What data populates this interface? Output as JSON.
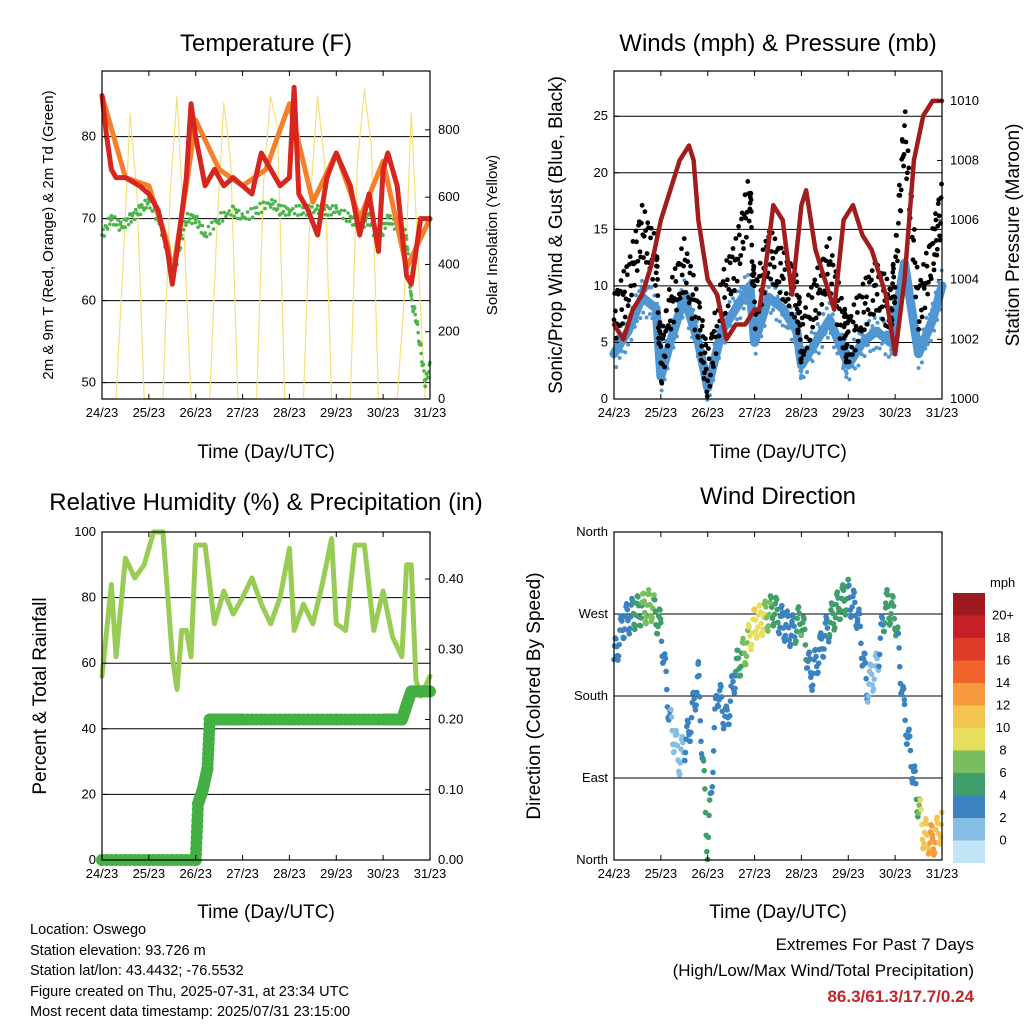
{
  "info": {
    "location": "Location: Oswego",
    "elevation": "Station elevation: 93.726 m",
    "latlon": "Station lat/lon: 43.4432; -76.5532",
    "created": "Figure created on Thu, 2025-07-31, at 23:34 UTC",
    "timestamp": "Most recent data timestamp: 2025/07/31 23:15:00"
  },
  "extremes": {
    "line1": "Extremes For Past 7 Days",
    "line2": "(High/Low/Max Wind/Total Precipitation)",
    "values": "86.3/61.3/17.7/0.24"
  },
  "colors": {
    "t2m": "#d7261e",
    "t9m": "#f57f2a",
    "td": "#4bb44a",
    "solar": "#f7e07a",
    "wind": "#4f96d2",
    "gust": "#000000",
    "pressure": "#a11d1d",
    "rh": "#99cc55",
    "precip": "#44b044"
  },
  "chart_data": [
    {
      "type": "line",
      "title": "Temperature (F)",
      "xlabel": "Time (Day/UTC)",
      "ylabel": "2m & 9m T (Red, Orange) & 2m Td (Green)",
      "y2label": "Solar Insolation (Yellow)",
      "x_ticks": [
        "24/23",
        "25/23",
        "26/23",
        "27/23",
        "28/23",
        "29/23",
        "30/23",
        "31/23"
      ],
      "xlim": [
        0,
        7
      ],
      "ylim": [
        48,
        88
      ],
      "y_ticks": [
        50,
        60,
        70,
        80
      ],
      "y2lim": [
        0,
        975
      ],
      "y2_ticks": [
        0,
        200,
        400,
        600,
        800
      ],
      "grid": "horizontal",
      "series": [
        {
          "name": "2m T",
          "axis": "left",
          "x": [
            0,
            0.1,
            0.2,
            0.3,
            0.5,
            0.8,
            1.0,
            1.2,
            1.4,
            1.5,
            1.6,
            1.8,
            1.9,
            2.0,
            2.2,
            2.4,
            2.6,
            2.8,
            3.0,
            3.2,
            3.4,
            3.6,
            3.8,
            4.0,
            4.1,
            4.2,
            4.4,
            4.6,
            4.8,
            5.0,
            5.3,
            5.5,
            5.7,
            5.9,
            6.0,
            6.1,
            6.3,
            6.5,
            6.6,
            6.8,
            7.0
          ],
          "values": [
            85,
            80,
            76,
            75,
            75,
            74,
            73,
            71,
            66,
            62,
            66,
            75,
            84,
            80,
            74,
            76,
            74,
            75,
            74,
            73,
            78,
            76,
            74,
            75,
            86,
            73,
            71,
            68,
            75,
            78,
            74,
            68,
            73,
            66,
            76,
            78,
            74,
            63,
            62,
            70,
            70
          ]
        },
        {
          "name": "9m T",
          "axis": "left",
          "x": [
            0,
            0.2,
            0.5,
            1.0,
            1.4,
            1.5,
            1.8,
            2.0,
            2.5,
            3.0,
            3.5,
            4.0,
            4.5,
            5.0,
            5.5,
            6.0,
            6.5,
            7.0
          ],
          "values": [
            85,
            81,
            75,
            74,
            67,
            63,
            74,
            82,
            76,
            74,
            76,
            84,
            72,
            78,
            70,
            77,
            64,
            70
          ]
        },
        {
          "name": "2m Td",
          "axis": "left",
          "x": [
            0,
            0.2,
            0.4,
            0.6,
            0.8,
            1.0,
            1.2,
            1.4,
            1.5,
            1.6,
            1.8,
            2.0,
            2.2,
            2.5,
            2.8,
            3.0,
            3.3,
            3.6,
            3.8,
            4.0,
            4.3,
            4.6,
            4.8,
            5.0,
            5.3,
            5.5,
            5.7,
            5.9,
            6.1,
            6.3,
            6.5,
            6.6,
            6.7,
            6.8,
            6.9,
            7.0
          ],
          "values": [
            68,
            70,
            69,
            70,
            71,
            72,
            70,
            66,
            63,
            65,
            70,
            70,
            68,
            70,
            71,
            70,
            71,
            72,
            71,
            71,
            71,
            71,
            71,
            71,
            70,
            69,
            70,
            67,
            70,
            69,
            68,
            60,
            58,
            54,
            50,
            52
          ]
        },
        {
          "name": "Solar Insolation",
          "axis": "right",
          "x": [
            0,
            0.3,
            0.45,
            0.6,
            0.75,
            0.9,
            1.3,
            1.45,
            1.6,
            1.75,
            1.9,
            2.3,
            2.45,
            2.6,
            2.75,
            2.9,
            3.3,
            3.45,
            3.6,
            3.75,
            3.9,
            4.3,
            4.45,
            4.6,
            4.75,
            4.9,
            5.3,
            5.45,
            5.6,
            5.75,
            5.9,
            6.3,
            6.45,
            6.6,
            6.75,
            6.9,
            7.0
          ],
          "values": [
            0,
            0,
            400,
            850,
            600,
            0,
            0,
            600,
            900,
            500,
            0,
            0,
            500,
            880,
            700,
            0,
            0,
            650,
            900,
            800,
            0,
            0,
            600,
            900,
            700,
            0,
            0,
            700,
            920,
            750,
            0,
            0,
            300,
            850,
            400,
            0,
            0
          ]
        }
      ]
    },
    {
      "type": "scatter",
      "title": "Winds (mph) & Pressure (mb)",
      "xlabel": "Time (Day/UTC)",
      "ylabel": "Sonic/Prop Wind & Gust (Blue, Black)",
      "y2label": "Station Pressure (Maroon)",
      "x_ticks": [
        "24/23",
        "25/23",
        "26/23",
        "27/23",
        "28/23",
        "29/23",
        "30/23",
        "31/23"
      ],
      "xlim": [
        0,
        7
      ],
      "ylim": [
        0,
        29
      ],
      "y_ticks": [
        0,
        5,
        10,
        15,
        20,
        25
      ],
      "y2lim": [
        1000,
        1011
      ],
      "y2_ticks": [
        1000,
        1002,
        1004,
        1006,
        1008,
        1010
      ],
      "grid": "horizontal",
      "series": [
        {
          "name": "Wind",
          "axis": "left",
          "x": [
            0,
            0.3,
            0.6,
            0.9,
            1.0,
            1.2,
            1.5,
            1.8,
            2.0,
            2.3,
            2.6,
            2.9,
            3.0,
            3.3,
            3.6,
            3.9,
            4.0,
            4.3,
            4.6,
            4.9,
            5.0,
            5.3,
            5.6,
            5.9,
            6.0,
            6.2,
            6.5,
            6.8,
            7.0
          ],
          "values": [
            4,
            6,
            9,
            8,
            2,
            5,
            9,
            5,
            1,
            6,
            8,
            10,
            5,
            9,
            8,
            6,
            3,
            5,
            7,
            4,
            3,
            5,
            6,
            5,
            7,
            12,
            4,
            7,
            10
          ]
        },
        {
          "name": "Gust",
          "axis": "left",
          "x": [
            0,
            0.3,
            0.6,
            0.9,
            1.0,
            1.2,
            1.5,
            1.8,
            2.0,
            2.3,
            2.6,
            2.9,
            3.0,
            3.3,
            3.6,
            3.9,
            4.0,
            4.3,
            4.6,
            4.9,
            5.0,
            5.3,
            5.6,
            5.9,
            6.0,
            6.2,
            6.5,
            6.8,
            7.0
          ],
          "values": [
            7,
            10,
            15,
            12,
            3,
            8,
            12,
            7,
            2,
            9,
            12,
            18,
            8,
            13,
            11,
            9,
            5,
            9,
            12,
            6,
            5,
            8,
            10,
            8,
            11,
            24,
            8,
            13,
            17
          ]
        },
        {
          "name": "Station Pressure",
          "axis": "right",
          "x": [
            0,
            0.2,
            0.4,
            0.6,
            0.8,
            1.0,
            1.2,
            1.4,
            1.6,
            1.7,
            1.8,
            2.0,
            2.2,
            2.4,
            2.6,
            2.8,
            3.0,
            3.1,
            3.2,
            3.4,
            3.6,
            3.8,
            4.0,
            4.1,
            4.3,
            4.5,
            4.7,
            4.9,
            5.1,
            5.3,
            5.5,
            5.6,
            5.8,
            6.0,
            6.2,
            6.4,
            6.6,
            6.8,
            7.0
          ],
          "values": [
            1002.5,
            1002,
            1003,
            1003.5,
            1004.5,
            1006,
            1007,
            1008,
            1008.5,
            1008,
            1006,
            1004,
            1003.5,
            1002,
            1002.5,
            1002.5,
            1003,
            1003,
            1004,
            1006.5,
            1006,
            1003.5,
            1006.5,
            1007,
            1005,
            1004,
            1003,
            1006,
            1006.5,
            1005.5,
            1005,
            1004.5,
            1003.5,
            1001.5,
            1004,
            1008,
            1009.5,
            1010,
            1010
          ]
        }
      ]
    },
    {
      "type": "line",
      "title": "Relative Humidity (%) & Precipitation (in)",
      "xlabel": "Time (Day/UTC)",
      "ylabel": "Percent & Total Rainfall",
      "x_ticks": [
        "24/23",
        "25/23",
        "26/23",
        "27/23",
        "28/23",
        "29/23",
        "30/23",
        "31/23"
      ],
      "xlim": [
        0,
        7
      ],
      "ylim": [
        0,
        100
      ],
      "y_ticks": [
        0,
        20,
        40,
        60,
        80,
        100
      ],
      "y2lim": [
        0,
        0.467
      ],
      "y2_ticks": [
        0.0,
        0.1,
        0.2,
        0.3,
        0.4
      ],
      "grid": "horizontal",
      "series": [
        {
          "name": "Relative Humidity",
          "axis": "left",
          "x": [
            0,
            0.1,
            0.2,
            0.3,
            0.5,
            0.7,
            0.9,
            1.1,
            1.3,
            1.5,
            1.6,
            1.7,
            1.8,
            1.9,
            2.0,
            2.2,
            2.4,
            2.6,
            2.8,
            3.0,
            3.2,
            3.4,
            3.6,
            3.8,
            4.0,
            4.1,
            4.3,
            4.5,
            4.7,
            4.9,
            5.0,
            5.2,
            5.4,
            5.6,
            5.8,
            6.0,
            6.2,
            6.4,
            6.5,
            6.6,
            6.7,
            6.8,
            7.0
          ],
          "values": [
            56,
            70,
            84,
            62,
            92,
            86,
            90,
            100,
            100,
            62,
            52,
            70,
            70,
            62,
            96,
            96,
            72,
            82,
            75,
            80,
            86,
            78,
            72,
            80,
            95,
            70,
            78,
            72,
            84,
            98,
            72,
            70,
            96,
            96,
            70,
            82,
            68,
            62,
            90,
            90,
            55,
            50,
            56
          ]
        },
        {
          "name": "Total Precipitation",
          "axis": "right",
          "x": [
            0,
            1.0,
            2.0,
            2.05,
            2.15,
            2.25,
            2.3,
            2.8,
            3.0,
            4.0,
            5.0,
            6.0,
            6.4,
            6.5,
            6.6,
            6.8,
            7.0
          ],
          "values": [
            0,
            0,
            0,
            0.08,
            0.1,
            0.13,
            0.2,
            0.2,
            0.2,
            0.2,
            0.2,
            0.2,
            0.2,
            0.22,
            0.24,
            0.24,
            0.24
          ]
        }
      ]
    },
    {
      "type": "scatter",
      "title": "Wind Direction",
      "xlabel": "Time (Day/UTC)",
      "ylabel": "Direction (Colored By Speed)",
      "x_ticks": [
        "24/23",
        "25/23",
        "26/23",
        "27/23",
        "28/23",
        "29/23",
        "30/23",
        "31/23"
      ],
      "xlim": [
        0,
        7
      ],
      "ylim": [
        0,
        360
      ],
      "y_tick_values": [
        0,
        90,
        180,
        270,
        360
      ],
      "y_tick_labels": [
        "North",
        "East",
        "South",
        "West",
        "North"
      ],
      "grid": "horizontal",
      "legend_title": "mph",
      "legend_labels": [
        "20+",
        "18",
        "16",
        "14",
        "12",
        "10",
        "8",
        "6",
        "4",
        "2",
        "0"
      ],
      "legend_colors": [
        "#9e1a1f",
        "#c52025",
        "#e03a28",
        "#f0632c",
        "#f79a3e",
        "#f4c451",
        "#e5df5c",
        "#79be5e",
        "#3f9e69",
        "#3a82c0",
        "#85bde5",
        "#c2e4f7"
      ],
      "legend_placement": "right",
      "series": [
        {
          "name": "Direction",
          "x": [
            0,
            0.2,
            0.4,
            0.6,
            0.8,
            1.0,
            1.2,
            1.4,
            1.6,
            1.8,
            2.0,
            2.2,
            2.4,
            2.6,
            2.8,
            3.0,
            3.2,
            3.4,
            3.6,
            3.8,
            4.0,
            4.2,
            4.4,
            4.6,
            4.8,
            5.0,
            5.2,
            5.4,
            5.6,
            5.8,
            6.0,
            6.2,
            6.4,
            6.6,
            6.8,
            7.0
          ],
          "values": [
            220,
            260,
            270,
            275,
            280,
            255,
            150,
            110,
            140,
            200,
            10,
            190,
            150,
            210,
            230,
            260,
            265,
            275,
            260,
            250,
            265,
            200,
            230,
            260,
            280,
            290,
            270,
            190,
            210,
            280,
            270,
            160,
            90,
            30,
            20,
            40
          ],
          "speeds": [
            3,
            4,
            5,
            7,
            8,
            5,
            3,
            2,
            4,
            4,
            6,
            3,
            3,
            5,
            8,
            11,
            9,
            6,
            4,
            4,
            7,
            3,
            4,
            5,
            6,
            5,
            4,
            3,
            2,
            6,
            6,
            3,
            3,
            12,
            14,
            11
          ]
        }
      ]
    }
  ]
}
